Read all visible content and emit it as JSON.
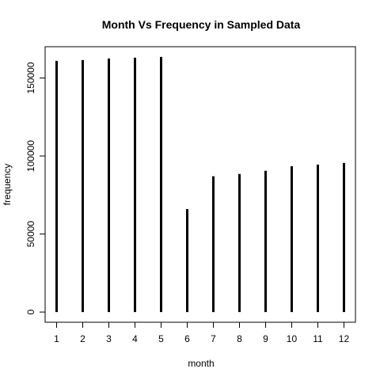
{
  "chart_data": {
    "type": "bar",
    "style": "histogram-spikes",
    "title": "Month Vs Frequency in Sampled Data",
    "xlabel": "month",
    "ylabel": "frequency",
    "categories": [
      "1",
      "2",
      "3",
      "4",
      "5",
      "6",
      "7",
      "8",
      "9",
      "10",
      "11",
      "12"
    ],
    "x": [
      1,
      2,
      3,
      4,
      5,
      6,
      7,
      8,
      9,
      10,
      11,
      12
    ],
    "values": [
      161000,
      161500,
      162500,
      163000,
      163500,
      66000,
      87000,
      88500,
      90500,
      93500,
      94500,
      95500
    ],
    "xlim": [
      0.56,
      12.44
    ],
    "ylim": [
      -6540,
      170040
    ],
    "yticks": [
      0,
      50000,
      100000,
      150000
    ],
    "ytick_labels": [
      "0",
      "50000",
      "100000",
      "150000"
    ],
    "grid": false,
    "legend": "none",
    "colors": {
      "bars": "#000000",
      "axes": "#000000",
      "background": "#ffffff"
    }
  }
}
